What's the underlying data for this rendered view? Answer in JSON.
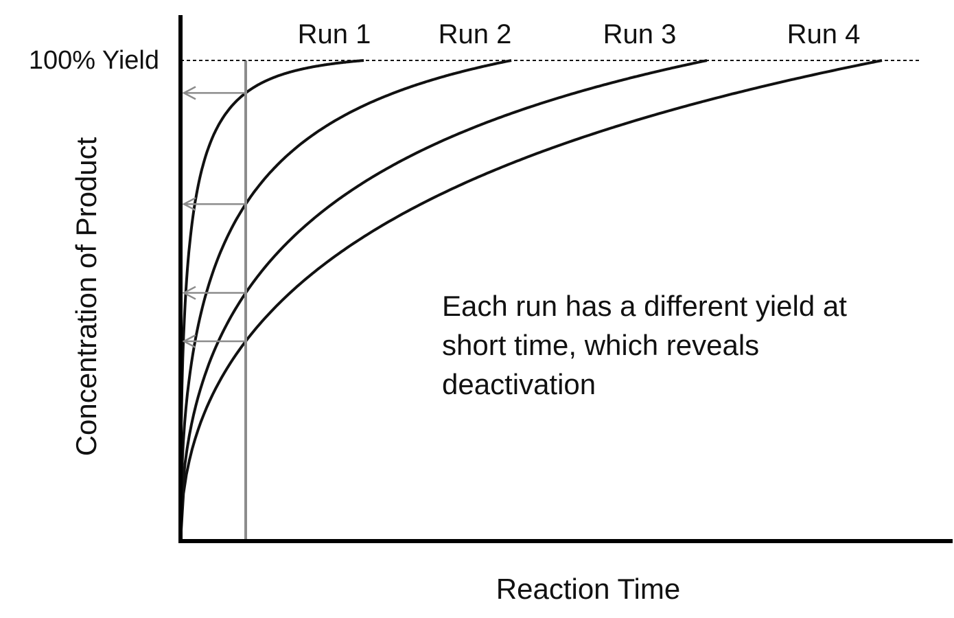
{
  "chart_data": {
    "type": "line",
    "title": "",
    "xlabel": "Reaction Time",
    "ylabel": "Concentration of Product",
    "reference_line": {
      "label": "100% Yield",
      "value": 100
    },
    "series": [
      {
        "name": "Run 1",
        "rate": 4.2
      },
      {
        "name": "Run 2",
        "rate": 2.2
      },
      {
        "name": "Run 3",
        "rate": 1.4
      },
      {
        "name": "Run 4",
        "rate": 1.0
      }
    ],
    "marker_time": 0.1,
    "annotation": [
      "Each run has a different yield at",
      "short time, which reveals",
      "deactivation"
    ],
    "colors": {
      "curve": "#111111",
      "marker": "#8c8c8c",
      "axis": "#000000"
    }
  }
}
